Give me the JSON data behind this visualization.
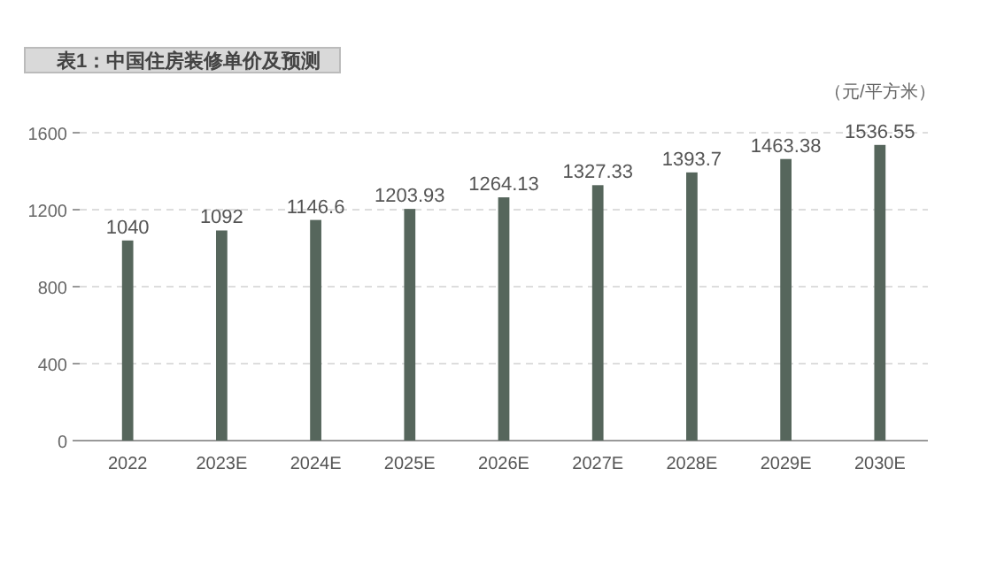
{
  "chart_data": {
    "type": "bar",
    "title": "表1：中国住房装修单价及预测",
    "ylabel": "（元/平方米）",
    "categories": [
      "2022",
      "2023E",
      "2024E",
      "2025E",
      "2026E",
      "2027E",
      "2028E",
      "2029E",
      "2030E"
    ],
    "values": [
      1040,
      1092,
      1146.6,
      1203.93,
      1264.13,
      1327.33,
      1393.7,
      1463.38,
      1536.55
    ],
    "color": "#56665c",
    "ylim": [
      0,
      1600
    ],
    "yticks": [
      0,
      400,
      800,
      1200,
      1600
    ],
    "grid": "y",
    "data_labels": true
  }
}
